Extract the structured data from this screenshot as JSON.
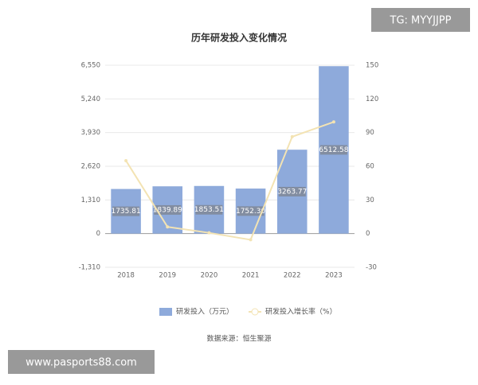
{
  "chart_data": {
    "type": "bar",
    "title": "历年研发投入变化情况",
    "categories": [
      "2018",
      "2019",
      "2020",
      "2021",
      "2022",
      "2023"
    ],
    "series": [
      {
        "name": "研发投入（万元）",
        "type": "bar",
        "color": "#8eaadb",
        "values": [
          1735.81,
          1839.89,
          1853.51,
          1752.3,
          3263.77,
          6512.58
        ],
        "value_labels": [
          "1735.81",
          "1839.89",
          "1853.51",
          "1752.30",
          "3263.77",
          "6512.58"
        ]
      },
      {
        "name": "研发投入增长率（%）",
        "type": "line",
        "axis": "y2",
        "color": "#f3e3b3",
        "values": [
          65,
          6,
          0.7,
          -5.5,
          86.3,
          99.5
        ]
      }
    ],
    "ylim": [
      -1310,
      6550
    ],
    "yticks": [
      {
        "value": -1310,
        "label": "-1,310"
      },
      0,
      {
        "value": 1310,
        "label": "1,310"
      },
      {
        "value": 2620,
        "label": "2,620"
      },
      {
        "value": 3930,
        "label": "3,930"
      },
      {
        "value": 5240,
        "label": "5,240"
      },
      {
        "value": 6550,
        "label": "6,550"
      }
    ],
    "y2lim": [
      -30,
      150
    ],
    "y2ticks": [
      -30,
      0,
      30,
      60,
      90,
      120,
      150
    ],
    "grid": true,
    "legend": "bottom",
    "source": "数据来源：恒生聚源",
    "watermarks": [
      "TG: MYYJJPP",
      "www.pasports88.com"
    ]
  }
}
